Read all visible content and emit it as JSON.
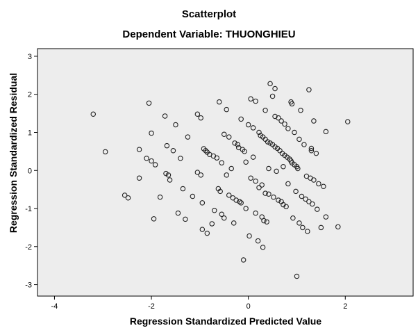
{
  "chart_data": {
    "type": "scatter",
    "title": "Scatterplot",
    "subtitle": "Dependent Variable: THUONGHIEU",
    "xlabel": "Regression Standardized Predicted Value",
    "ylabel": "Regression Standardized Residual",
    "xlim": [
      -4.35,
      3.4
    ],
    "ylim": [
      -3.3,
      3.2
    ],
    "xticks": [
      -4,
      -2,
      0,
      2
    ],
    "yticks": [
      3,
      2,
      1,
      0,
      -1,
      -2,
      -3
    ],
    "grid": false,
    "marker": "hollow-circle",
    "colors": {
      "plot_background": "#ededed",
      "marker": "#222222",
      "axis": "#000000"
    },
    "points": [
      [
        -3.2,
        1.48
      ],
      [
        -2.95,
        0.49
      ],
      [
        -2.55,
        -0.65
      ],
      [
        -2.48,
        -0.72
      ],
      [
        -2.25,
        0.55
      ],
      [
        -2.25,
        -0.2
      ],
      [
        -2.1,
        0.32
      ],
      [
        -2.05,
        1.77
      ],
      [
        -2.0,
        0.98
      ],
      [
        -2.0,
        0.25
      ],
      [
        -1.95,
        -1.27
      ],
      [
        -1.92,
        0.15
      ],
      [
        -1.82,
        -0.7
      ],
      [
        -1.72,
        1.43
      ],
      [
        -1.7,
        -0.08
      ],
      [
        -1.68,
        0.65
      ],
      [
        -1.65,
        -0.12
      ],
      [
        -1.62,
        -0.25
      ],
      [
        -1.55,
        0.52
      ],
      [
        -1.5,
        1.2
      ],
      [
        -1.45,
        -1.12
      ],
      [
        -1.4,
        0.32
      ],
      [
        -1.35,
        -0.48
      ],
      [
        -1.3,
        -1.28
      ],
      [
        -1.25,
        0.88
      ],
      [
        -1.15,
        -0.68
      ],
      [
        -1.05,
        1.48
      ],
      [
        -1.05,
        -0.05
      ],
      [
        -0.98,
        1.38
      ],
      [
        -0.98,
        -0.12
      ],
      [
        -0.95,
        -0.85
      ],
      [
        -0.95,
        -1.55
      ],
      [
        -0.92,
        0.57
      ],
      [
        -0.88,
        0.52
      ],
      [
        -0.85,
        -1.65
      ],
      [
        -0.85,
        0.48
      ],
      [
        -0.8,
        0.42
      ],
      [
        -0.75,
        -1.4
      ],
      [
        -0.72,
        0.38
      ],
      [
        -0.7,
        -1.05
      ],
      [
        -0.65,
        0.33
      ],
      [
        -0.62,
        -0.48
      ],
      [
        -0.6,
        1.8
      ],
      [
        -0.58,
        -0.55
      ],
      [
        -0.55,
        0.2
      ],
      [
        -0.55,
        -1.15
      ],
      [
        -0.5,
        -1.25
      ],
      [
        -0.5,
        0.95
      ],
      [
        -0.45,
        1.6
      ],
      [
        -0.45,
        -0.12
      ],
      [
        -0.4,
        0.88
      ],
      [
        -0.4,
        -0.65
      ],
      [
        -0.35,
        0.05
      ],
      [
        -0.32,
        -0.72
      ],
      [
        -0.3,
        -1.38
      ],
      [
        -0.28,
        0.72
      ],
      [
        -0.25,
        -0.78
      ],
      [
        -0.22,
        0.68
      ],
      [
        -0.2,
        0.6
      ],
      [
        -0.18,
        -0.82
      ],
      [
        -0.15,
        1.35
      ],
      [
        -0.15,
        -0.85
      ],
      [
        -0.12,
        0.55
      ],
      [
        -0.1,
        -2.35
      ],
      [
        -0.08,
        0.5
      ],
      [
        -0.05,
        0.22
      ],
      [
        -0.05,
        -1.0
      ],
      [
        0.0,
        1.2
      ],
      [
        0.02,
        -1.72
      ],
      [
        0.05,
        1.88
      ],
      [
        0.05,
        -0.2
      ],
      [
        0.1,
        1.12
      ],
      [
        0.1,
        0.35
      ],
      [
        0.15,
        1.82
      ],
      [
        0.15,
        -0.28
      ],
      [
        0.15,
        -1.12
      ],
      [
        0.2,
        -1.85
      ],
      [
        0.22,
        1.0
      ],
      [
        0.22,
        -0.45
      ],
      [
        0.25,
        0.92
      ],
      [
        0.28,
        -0.38
      ],
      [
        0.28,
        -1.22
      ],
      [
        0.3,
        0.88
      ],
      [
        0.3,
        -2.02
      ],
      [
        0.32,
        -1.32
      ],
      [
        0.35,
        1.58
      ],
      [
        0.35,
        0.82
      ],
      [
        0.35,
        -0.6
      ],
      [
        0.38,
        -1.35
      ],
      [
        0.4,
        0.75
      ],
      [
        0.42,
        -0.62
      ],
      [
        0.42,
        0.05
      ],
      [
        0.45,
        2.28
      ],
      [
        0.45,
        0.72
      ],
      [
        0.5,
        1.95
      ],
      [
        0.5,
        0.68
      ],
      [
        0.52,
        -0.7
      ],
      [
        0.55,
        1.42
      ],
      [
        0.55,
        0.62
      ],
      [
        0.55,
        2.15
      ],
      [
        0.58,
        -0.02
      ],
      [
        0.6,
        0.58
      ],
      [
        0.62,
        -0.78
      ],
      [
        0.62,
        1.38
      ],
      [
        0.65,
        0.52
      ],
      [
        0.68,
        1.3
      ],
      [
        0.68,
        -0.82
      ],
      [
        0.7,
        0.45
      ],
      [
        0.72,
        -0.9
      ],
      [
        0.72,
        0.1
      ],
      [
        0.75,
        1.22
      ],
      [
        0.75,
        0.4
      ],
      [
        0.78,
        -0.95
      ],
      [
        0.8,
        0.35
      ],
      [
        0.82,
        1.1
      ],
      [
        0.82,
        -0.35
      ],
      [
        0.85,
        0.3
      ],
      [
        0.88,
        1.8
      ],
      [
        0.88,
        0.25
      ],
      [
        0.9,
        1.75
      ],
      [
        0.9,
        0.2
      ],
      [
        0.92,
        -1.25
      ],
      [
        0.95,
        1.0
      ],
      [
        0.95,
        0.15
      ],
      [
        0.98,
        -0.55
      ],
      [
        1.0,
        0.1
      ],
      [
        1.0,
        -2.78
      ],
      [
        1.02,
        0.05
      ],
      [
        1.05,
        0.82
      ],
      [
        1.05,
        -1.38
      ],
      [
        1.08,
        1.58
      ],
      [
        1.1,
        -0.68
      ],
      [
        1.12,
        -1.5
      ],
      [
        1.15,
        0.68
      ],
      [
        1.18,
        -0.75
      ],
      [
        1.2,
        -0.15
      ],
      [
        1.22,
        -1.6
      ],
      [
        1.25,
        2.12
      ],
      [
        1.25,
        -0.82
      ],
      [
        1.28,
        -0.2
      ],
      [
        1.3,
        0.58
      ],
      [
        1.3,
        0.52
      ],
      [
        1.32,
        -0.88
      ],
      [
        1.35,
        1.3
      ],
      [
        1.35,
        -0.25
      ],
      [
        1.4,
        0.45
      ],
      [
        1.42,
        -1.02
      ],
      [
        1.45,
        -0.35
      ],
      [
        1.5,
        -1.5
      ],
      [
        1.55,
        -0.42
      ],
      [
        1.6,
        1.02
      ],
      [
        1.6,
        -1.22
      ],
      [
        1.85,
        -1.48
      ],
      [
        2.05,
        1.28
      ]
    ]
  }
}
